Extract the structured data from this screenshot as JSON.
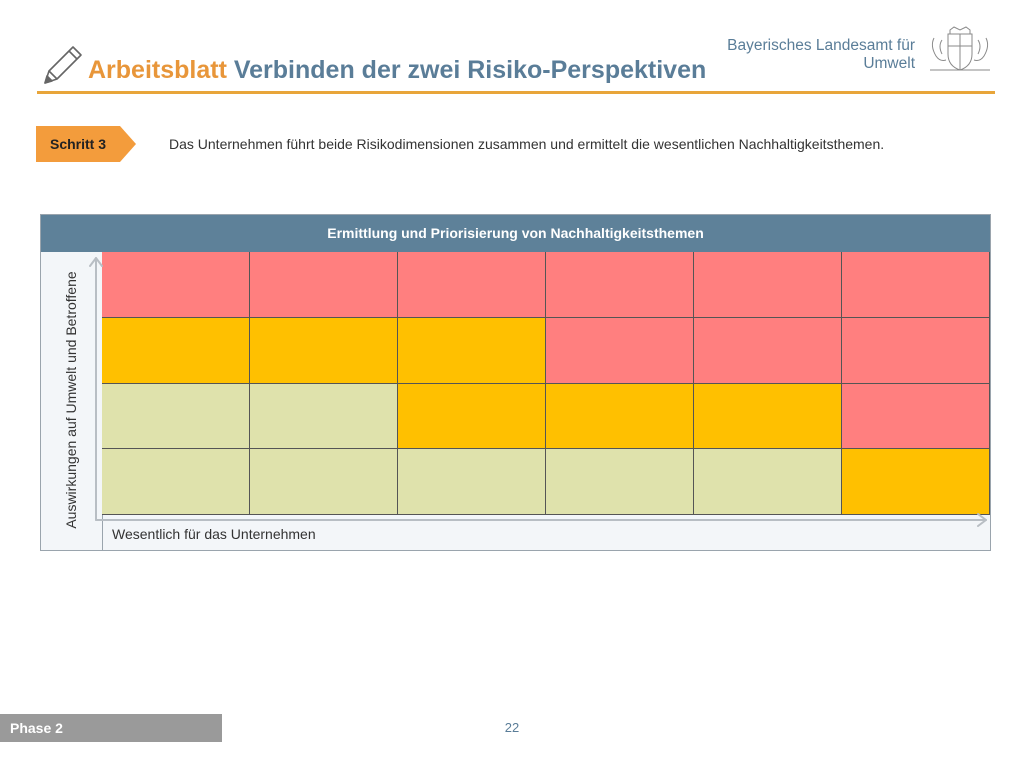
{
  "header": {
    "title_part1": "Arbeitsblatt",
    "title_part2": "Verbinden der zwei Risiko-Perspektiven",
    "org_line1": "Bayerisches Landesamt für",
    "org_line2": "Umwelt",
    "pencil_icon": "pencil-icon",
    "crest_icon": "coat-of-arms-icon"
  },
  "step": {
    "label": "Schritt 3",
    "text": "Das Unternehmen führt beide Risikodimensionen zusammen und ermittelt die wesentlichen Nachhaltigkeitsthemen."
  },
  "matrix": {
    "title": "Ermittlung und Priorisierung von Nachhaltigkeitsthemen",
    "y_label": "Auswirkungen auf Umwelt und Betroffene",
    "x_label": "Wesentlich für das Unternehmen",
    "colors": {
      "R": "#FF7F7F",
      "O": "#FFC000",
      "G": "#DFE2AC"
    },
    "rows": [
      [
        "R",
        "R",
        "R",
        "R",
        "R",
        "R"
      ],
      [
        "O",
        "O",
        "O",
        "R",
        "R",
        "R"
      ],
      [
        "G",
        "G",
        "O",
        "O",
        "O",
        "R"
      ],
      [
        "G",
        "G",
        "G",
        "G",
        "G",
        "O"
      ]
    ]
  },
  "footer": {
    "phase": "Phase 2",
    "page": "22"
  }
}
